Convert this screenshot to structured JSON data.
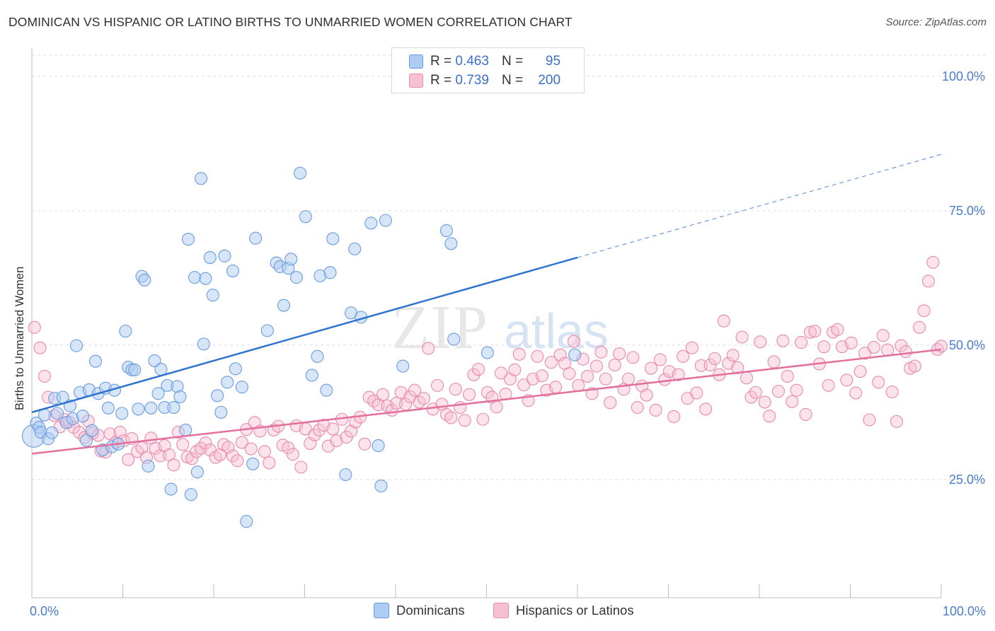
{
  "title": "DOMINICAN VS HISPANIC OR LATINO BIRTHS TO UNMARRIED WOMEN CORRELATION CHART",
  "source": "Source: ZipAtlas.com",
  "watermark": {
    "zip": "ZIP",
    "atlas": "atlas"
  },
  "colors": {
    "blue_fill": "#aecbf2",
    "blue_stroke": "#6a9ce0",
    "blue_line": "#2f73d0",
    "pink_fill": "#f6bfd2",
    "pink_stroke": "#e98aab",
    "pink_line": "#e2709a",
    "axis_text": "#4a7cc9",
    "grid": "#dddddd"
  },
  "legend_top": {
    "rows": [
      {
        "r_label": "R =",
        "r_value": "0.463",
        "n_label": "N =",
        "n_value": "95"
      },
      {
        "r_label": "R =",
        "r_value": "0.739",
        "n_label": "N =",
        "n_value": "200"
      }
    ]
  },
  "legend_bottom": [
    {
      "label": "Dominicans"
    },
    {
      "label": "Hispanics or Latinos"
    }
  ],
  "chart_data": {
    "type": "scatter",
    "title": "DOMINICAN VS HISPANIC OR LATINO BIRTHS TO UNMARRIED WOMEN CORRELATION CHART",
    "xlabel": "",
    "ylabel": "Births to Unmarried Women",
    "xlim": [
      0,
      100
    ],
    "ylim": [
      3,
      105
    ],
    "x_tick_labels": [
      "0.0%",
      "100.0%"
    ],
    "y_ticks": [
      25,
      50,
      75,
      100
    ],
    "y_tick_labels": [
      "25.0%",
      "50.0%",
      "75.0%",
      "100.0%"
    ],
    "grid": true,
    "legend_position": "top-center",
    "series": [
      {
        "name": "Dominicans",
        "color": "#aecbf2",
        "R": 0.463,
        "N": 95,
        "trend": {
          "x0": 0,
          "y0": 37.5,
          "x1": 60,
          "y1": 66.3,
          "dashed_to_x": 100,
          "dashed_to_y": 85.5
        },
        "points": [
          [
            0.2,
            33.1
          ],
          [
            0.5,
            35.5
          ],
          [
            0.8,
            34.7
          ],
          [
            1.0,
            33.8
          ],
          [
            1.4,
            37.0
          ],
          [
            1.8,
            32.6
          ],
          [
            2.2,
            33.7
          ],
          [
            2.5,
            40.1
          ],
          [
            2.8,
            37.3
          ],
          [
            3.4,
            40.3
          ],
          [
            3.8,
            35.6
          ],
          [
            4.2,
            38.7
          ],
          [
            4.5,
            36.3
          ],
          [
            4.9,
            49.9
          ],
          [
            5.3,
            41.2
          ],
          [
            5.6,
            36.8
          ],
          [
            6.0,
            32.3
          ],
          [
            6.3,
            41.7
          ],
          [
            6.6,
            34.1
          ],
          [
            7.0,
            47.0
          ],
          [
            7.3,
            41.0
          ],
          [
            7.8,
            30.5
          ],
          [
            8.1,
            42.0
          ],
          [
            8.4,
            38.3
          ],
          [
            8.8,
            31.1
          ],
          [
            9.1,
            41.6
          ],
          [
            9.5,
            31.6
          ],
          [
            9.9,
            37.3
          ],
          [
            10.3,
            52.6
          ],
          [
            10.6,
            45.9
          ],
          [
            11.0,
            45.4
          ],
          [
            11.3,
            45.4
          ],
          [
            11.7,
            38.1
          ],
          [
            12.1,
            62.8
          ],
          [
            12.4,
            62.1
          ],
          [
            12.8,
            27.5
          ],
          [
            13.1,
            38.3
          ],
          [
            13.5,
            47.1
          ],
          [
            13.9,
            41.0
          ],
          [
            14.2,
            45.5
          ],
          [
            14.6,
            38.4
          ],
          [
            14.9,
            42.5
          ],
          [
            15.3,
            23.2
          ],
          [
            15.6,
            38.4
          ],
          [
            16.0,
            42.3
          ],
          [
            16.3,
            40.4
          ],
          [
            16.9,
            34.2
          ],
          [
            17.2,
            69.7
          ],
          [
            17.5,
            22.2
          ],
          [
            17.9,
            62.6
          ],
          [
            18.2,
            26.4
          ],
          [
            18.6,
            81.0
          ],
          [
            18.9,
            50.2
          ],
          [
            19.1,
            62.4
          ],
          [
            19.6,
            66.3
          ],
          [
            19.9,
            59.3
          ],
          [
            20.4,
            40.6
          ],
          [
            20.8,
            37.5
          ],
          [
            21.2,
            66.6
          ],
          [
            21.5,
            43.1
          ],
          [
            22.1,
            63.8
          ],
          [
            22.4,
            45.6
          ],
          [
            23.1,
            42.2
          ],
          [
            23.6,
            17.2
          ],
          [
            24.3,
            27.9
          ],
          [
            24.6,
            69.9
          ],
          [
            25.9,
            52.7
          ],
          [
            26.9,
            65.3
          ],
          [
            27.3,
            64.6
          ],
          [
            27.7,
            57.4
          ],
          [
            28.2,
            64.3
          ],
          [
            28.5,
            66.0
          ],
          [
            29.1,
            62.6
          ],
          [
            29.5,
            82.0
          ],
          [
            30.1,
            73.9
          ],
          [
            30.8,
            44.4
          ],
          [
            31.4,
            47.9
          ],
          [
            31.7,
            62.9
          ],
          [
            32.4,
            41.6
          ],
          [
            32.8,
            63.5
          ],
          [
            33.1,
            69.8
          ],
          [
            34.5,
            25.9
          ],
          [
            35.1,
            56.0
          ],
          [
            35.5,
            67.9
          ],
          [
            36.2,
            55.2
          ],
          [
            37.3,
            72.7
          ],
          [
            38.1,
            31.3
          ],
          [
            38.4,
            23.8
          ],
          [
            38.9,
            73.2
          ],
          [
            40.8,
            46.1
          ],
          [
            45.6,
            71.3
          ],
          [
            46.1,
            68.9
          ],
          [
            46.4,
            51.1
          ],
          [
            50.1,
            48.6
          ],
          [
            59.7,
            48.2
          ]
        ]
      },
      {
        "name": "Hispanics or Latinos",
        "color": "#f6bfd2",
        "R": 0.739,
        "N": 200,
        "trend": {
          "x0": 0,
          "y0": 29.8,
          "x1": 100,
          "y1": 49.2
        },
        "points": [
          [
            0.3,
            53.3
          ],
          [
            0.9,
            49.5
          ],
          [
            1.4,
            44.2
          ],
          [
            1.8,
            40.3
          ],
          [
            2.5,
            36.9
          ],
          [
            3.1,
            34.8
          ],
          [
            3.6,
            36.2
          ],
          [
            4.1,
            35.7
          ],
          [
            4.6,
            34.7
          ],
          [
            5.2,
            33.8
          ],
          [
            5.8,
            32.8
          ],
          [
            6.2,
            35.9
          ],
          [
            6.7,
            33.6
          ],
          [
            7.3,
            33.2
          ],
          [
            7.6,
            30.3
          ],
          [
            8.1,
            30.1
          ],
          [
            8.6,
            33.5
          ],
          [
            9.2,
            31.9
          ],
          [
            9.7,
            33.8
          ],
          [
            10.1,
            32.2
          ],
          [
            10.6,
            28.7
          ],
          [
            11.0,
            32.6
          ],
          [
            11.6,
            30.2
          ],
          [
            12.1,
            30.9
          ],
          [
            12.6,
            29.1
          ],
          [
            13.1,
            32.7
          ],
          [
            13.6,
            30.8
          ],
          [
            14.1,
            29.4
          ],
          [
            14.6,
            31.3
          ],
          [
            15.1,
            29.6
          ],
          [
            15.6,
            27.7
          ],
          [
            16.1,
            33.8
          ],
          [
            16.6,
            31.5
          ],
          [
            17.1,
            29.2
          ],
          [
            17.6,
            28.9
          ],
          [
            18.1,
            30.2
          ],
          [
            18.6,
            30.8
          ],
          [
            19.1,
            31.8
          ],
          [
            19.6,
            30.5
          ],
          [
            20.2,
            29.1
          ],
          [
            20.7,
            29.6
          ],
          [
            21.1,
            31.5
          ],
          [
            21.6,
            31.0
          ],
          [
            22.1,
            29.4
          ],
          [
            22.6,
            28.5
          ],
          [
            23.1,
            31.9
          ],
          [
            23.6,
            34.3
          ],
          [
            24.1,
            30.7
          ],
          [
            24.5,
            35.6
          ],
          [
            25.1,
            34.0
          ],
          [
            25.6,
            30.2
          ],
          [
            26.1,
            28.1
          ],
          [
            26.6,
            34.2
          ],
          [
            27.1,
            34.9
          ],
          [
            27.6,
            31.4
          ],
          [
            28.2,
            30.9
          ],
          [
            28.7,
            29.7
          ],
          [
            29.1,
            35.0
          ],
          [
            29.6,
            27.3
          ],
          [
            30.1,
            34.4
          ],
          [
            30.6,
            31.7
          ],
          [
            31.1,
            33.3
          ],
          [
            31.6,
            34.2
          ],
          [
            32.1,
            35.1
          ],
          [
            32.6,
            31.2
          ],
          [
            33.1,
            34.4
          ],
          [
            33.5,
            32.2
          ],
          [
            34.1,
            36.2
          ],
          [
            34.6,
            32.9
          ],
          [
            35.1,
            34.0
          ],
          [
            35.6,
            35.7
          ],
          [
            36.1,
            36.6
          ],
          [
            36.6,
            31.6
          ],
          [
            37.1,
            40.3
          ],
          [
            37.6,
            39.6
          ],
          [
            38.1,
            38.9
          ],
          [
            38.6,
            40.8
          ],
          [
            39.1,
            38.7
          ],
          [
            39.6,
            37.9
          ],
          [
            40.1,
            39.2
          ],
          [
            40.6,
            41.2
          ],
          [
            41.1,
            39.0
          ],
          [
            41.6,
            40.4
          ],
          [
            42.1,
            41.6
          ],
          [
            42.6,
            39.4
          ],
          [
            43.1,
            40.1
          ],
          [
            43.6,
            49.4
          ],
          [
            44.1,
            38.1
          ],
          [
            44.6,
            42.5
          ],
          [
            45.1,
            39.0
          ],
          [
            45.6,
            37.1
          ],
          [
            46.1,
            36.5
          ],
          [
            46.6,
            41.8
          ],
          [
            47.1,
            38.4
          ],
          [
            47.6,
            36.0
          ],
          [
            48.1,
            40.8
          ],
          [
            48.6,
            44.5
          ],
          [
            49.1,
            45.5
          ],
          [
            49.6,
            36.2
          ],
          [
            50.1,
            41.2
          ],
          [
            50.6,
            40.3
          ],
          [
            51.1,
            38.5
          ],
          [
            51.6,
            44.8
          ],
          [
            52.1,
            40.9
          ],
          [
            52.6,
            43.7
          ],
          [
            53.1,
            45.4
          ],
          [
            53.6,
            48.3
          ],
          [
            54.1,
            42.6
          ],
          [
            54.6,
            39.7
          ],
          [
            55.1,
            43.7
          ],
          [
            55.6,
            47.9
          ],
          [
            56.1,
            44.3
          ],
          [
            56.6,
            41.6
          ],
          [
            57.1,
            46.8
          ],
          [
            57.6,
            42.2
          ],
          [
            58.1,
            48.2
          ],
          [
            58.6,
            46.6
          ],
          [
            59.1,
            44.7
          ],
          [
            59.6,
            50.7
          ],
          [
            60.1,
            42.5
          ],
          [
            60.6,
            47.4
          ],
          [
            61.1,
            44.2
          ],
          [
            61.6,
            41.0
          ],
          [
            62.1,
            46.1
          ],
          [
            62.6,
            48.7
          ],
          [
            63.1,
            43.7
          ],
          [
            63.6,
            39.3
          ],
          [
            64.1,
            46.3
          ],
          [
            64.6,
            48.4
          ],
          [
            65.1,
            41.8
          ],
          [
            65.6,
            43.7
          ],
          [
            66.1,
            47.7
          ],
          [
            66.6,
            38.4
          ],
          [
            67.1,
            42.4
          ],
          [
            67.6,
            40.7
          ],
          [
            68.1,
            45.7
          ],
          [
            68.6,
            37.9
          ],
          [
            69.1,
            47.3
          ],
          [
            69.6,
            43.6
          ],
          [
            70.1,
            45.1
          ],
          [
            70.6,
            36.7
          ],
          [
            71.1,
            44.5
          ],
          [
            71.6,
            47.9
          ],
          [
            72.1,
            40.1
          ],
          [
            72.6,
            49.5
          ],
          [
            73.1,
            41.1
          ],
          [
            73.6,
            46.2
          ],
          [
            74.1,
            38.1
          ],
          [
            74.6,
            46.3
          ],
          [
            75.1,
            47.5
          ],
          [
            75.6,
            44.5
          ],
          [
            76.1,
            54.5
          ],
          [
            76.6,
            46.6
          ],
          [
            77.1,
            48.1
          ],
          [
            77.6,
            45.8
          ],
          [
            78.1,
            51.5
          ],
          [
            78.6,
            43.9
          ],
          [
            79.1,
            40.3
          ],
          [
            79.6,
            41.2
          ],
          [
            80.1,
            50.6
          ],
          [
            80.6,
            39.4
          ],
          [
            81.1,
            36.8
          ],
          [
            81.6,
            46.9
          ],
          [
            82.1,
            41.4
          ],
          [
            82.6,
            50.8
          ],
          [
            83.1,
            44.2
          ],
          [
            83.6,
            39.5
          ],
          [
            84.1,
            41.6
          ],
          [
            84.6,
            50.5
          ],
          [
            85.1,
            37.1
          ],
          [
            85.6,
            52.4
          ],
          [
            86.1,
            52.6
          ],
          [
            86.6,
            46.5
          ],
          [
            87.1,
            49.7
          ],
          [
            87.6,
            42.5
          ],
          [
            88.1,
            52.4
          ],
          [
            88.6,
            52.9
          ],
          [
            89.1,
            49.7
          ],
          [
            89.6,
            43.5
          ],
          [
            90.1,
            50.4
          ],
          [
            90.6,
            41.1
          ],
          [
            91.1,
            45.1
          ],
          [
            91.6,
            48.5
          ],
          [
            92.1,
            36.1
          ],
          [
            92.6,
            49.6
          ],
          [
            93.1,
            43.1
          ],
          [
            93.6,
            51.8
          ],
          [
            94.1,
            49.1
          ],
          [
            94.6,
            41.3
          ],
          [
            95.1,
            35.8
          ],
          [
            95.6,
            49.9
          ],
          [
            96.1,
            48.8
          ],
          [
            96.6,
            45.7
          ],
          [
            97.1,
            46.1
          ],
          [
            97.6,
            53.3
          ],
          [
            98.1,
            56.4
          ],
          [
            98.6,
            61.9
          ],
          [
            99.1,
            65.4
          ],
          [
            99.6,
            49.2
          ],
          [
            100.0,
            49.8
          ]
        ]
      }
    ]
  }
}
